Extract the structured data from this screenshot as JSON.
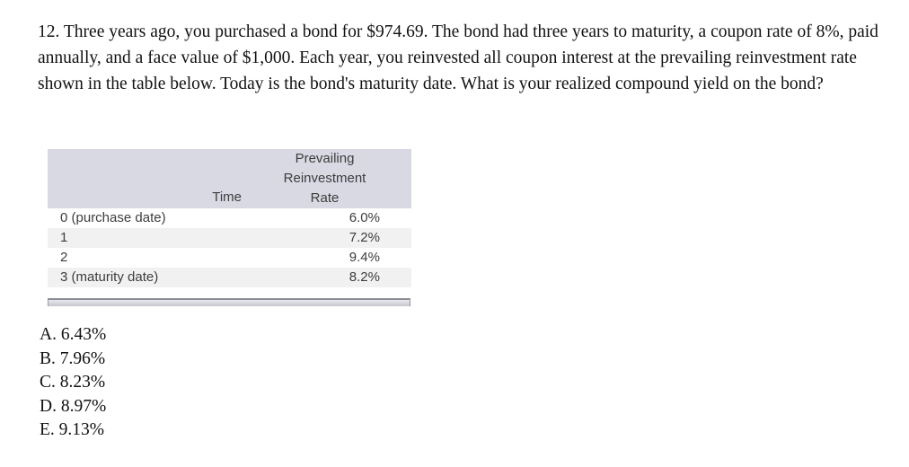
{
  "question": {
    "text": "12. Three years ago, you purchased a bond for $974.69. The bond had three years to maturity, a coupon rate of 8%, paid annually, and a face value of $1,000. Each year, you reinvested all coupon interest at the prevailing reinvestment rate shown in the table below. Today is the bond's maturity date. What is your realized compound yield on the bond?"
  },
  "table": {
    "header": {
      "time_label": "Time",
      "rate_label_lines": [
        "Prevailing",
        "Reinvestment",
        "Rate"
      ]
    },
    "rows": [
      {
        "time": "0 (purchase date)",
        "rate": "6.0%"
      },
      {
        "time": "1",
        "rate": "7.2%"
      },
      {
        "time": "2",
        "rate": "9.4%"
      },
      {
        "time": "3 (maturity date)",
        "rate": "8.2%"
      }
    ],
    "colors": {
      "header_bg": "#d9d9e4",
      "stripe_bg": "#f1f1f1",
      "text": "#3d3d3d"
    }
  },
  "choices": {
    "a": "A. 6.43%",
    "b": "B. 7.96%",
    "c": "C. 8.23%",
    "d": "D. 8.97%",
    "e": "E. 9.13%"
  }
}
